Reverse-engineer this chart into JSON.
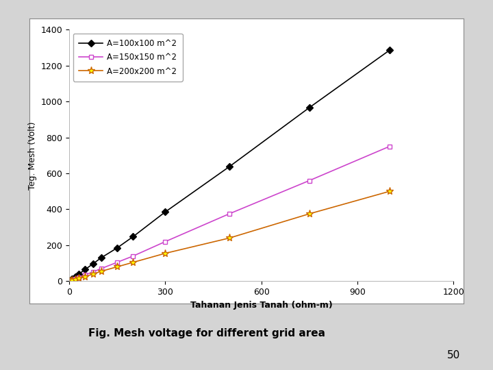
{
  "series": [
    {
      "label": "A=100x100 m^2",
      "color": "#000000",
      "marker": "D",
      "marker_facecolor": "#000000",
      "x": [
        1,
        5,
        10,
        20,
        30,
        50,
        75,
        100,
        150,
        200,
        300,
        500,
        750,
        1000
      ],
      "y": [
        1.3,
        6.5,
        13,
        26,
        39,
        65,
        97,
        130,
        185,
        248,
        385,
        637,
        966,
        1285
      ]
    },
    {
      "label": "A=150x150 m^2",
      "color": "#cc44cc",
      "marker": "s",
      "marker_facecolor": "#ffffff",
      "x": [
        1,
        5,
        10,
        20,
        30,
        50,
        75,
        100,
        150,
        200,
        300,
        500,
        750,
        1000
      ],
      "y": [
        0.7,
        3.5,
        7,
        14,
        21,
        35,
        52,
        70,
        105,
        140,
        220,
        375,
        560,
        750
      ]
    },
    {
      "label": "A=200x200 m^2",
      "color": "#cc6600",
      "marker": "*",
      "marker_facecolor": "#ffff00",
      "x": [
        1,
        5,
        10,
        20,
        30,
        50,
        75,
        100,
        150,
        200,
        300,
        500,
        750,
        1000
      ],
      "y": [
        0.5,
        2.5,
        5,
        10,
        15,
        25,
        40,
        55,
        80,
        105,
        155,
        240,
        375,
        500
      ]
    }
  ],
  "xlabel": "Tahanan Jenis Tanah (ohm-m)",
  "ylabel": "Teg. Mesh (Volt)",
  "xlim": [
    0,
    1200
  ],
  "ylim": [
    0,
    1400
  ],
  "xticks": [
    0,
    300,
    600,
    900,
    1200
  ],
  "yticks": [
    0,
    200,
    400,
    600,
    800,
    1000,
    1200,
    1400
  ],
  "figure_bg": "#d4d4d4",
  "axes_bg": "#ffffff",
  "box_bg": "#ffffff",
  "caption": "Fig. Mesh voltage for different grid area",
  "page_num": "50",
  "markers": [
    "D",
    "s",
    "*"
  ],
  "marker_sizes": [
    5,
    5,
    8
  ],
  "marker_facecolors": [
    "#000000",
    "#ffffff",
    "#ffff00"
  ]
}
